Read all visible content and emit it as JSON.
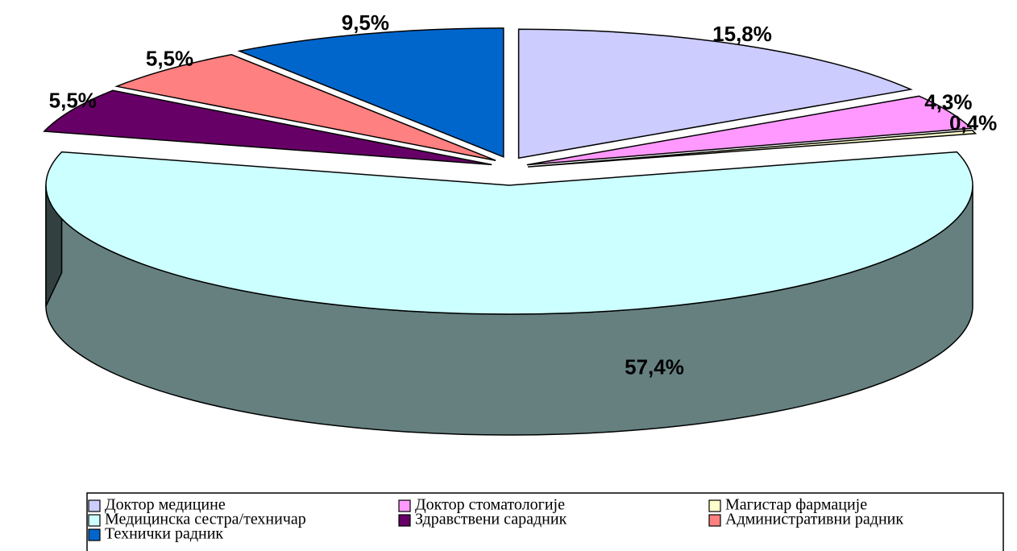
{
  "chart_data": {
    "type": "pie3d",
    "categories": [
      "Доктор медицине",
      "Доктор стоматологије",
      "Магистар фармације",
      "Медицинска сестра/техничар",
      "Здравствени сарадник",
      "Административни радник",
      "Технички радник"
    ],
    "values": [
      15.8,
      4.3,
      0.4,
      57.4,
      5.5,
      5.5,
      9.5
    ],
    "value_labels": [
      "15,8%",
      "4,3%",
      "0,4%",
      "57,4%",
      "5,5%",
      "5,5%",
      "9,5%"
    ],
    "colors": [
      "#ccccff",
      "#ff99ff",
      "#ffffcc",
      "#ccffff",
      "#660066",
      "#ff8080",
      "#0066cc"
    ],
    "legend": "bottom"
  }
}
